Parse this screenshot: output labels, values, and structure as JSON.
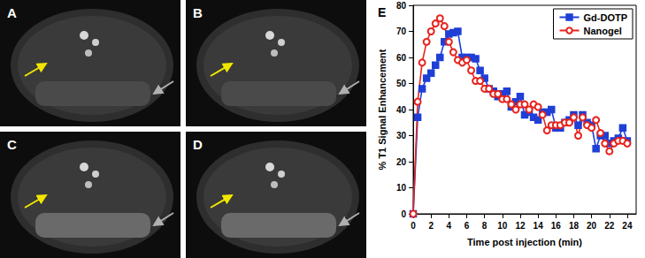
{
  "image_panels": {
    "labels": [
      "A",
      "B",
      "C",
      "D"
    ]
  },
  "chart_data": {
    "type": "line",
    "title": "E",
    "x_label": "Time post injection (min)",
    "y_label": "% T1 Signal Enhancement",
    "xlim": [
      0,
      25
    ],
    "xticks": [
      0,
      2,
      4,
      6,
      8,
      10,
      12,
      14,
      16,
      18,
      20,
      22,
      24
    ],
    "ylim": [
      0,
      80
    ],
    "yticks": [
      0,
      10,
      20,
      30,
      40,
      50,
      60,
      70,
      80
    ],
    "grid": false,
    "legend": "upper right",
    "x": [
      0,
      0.5,
      1,
      1.5,
      2,
      2.5,
      3,
      3.5,
      4,
      4.5,
      5,
      5.5,
      6,
      6.5,
      7,
      7.5,
      8,
      8.5,
      9,
      9.5,
      10,
      10.5,
      11,
      11.5,
      12,
      12.5,
      13,
      13.5,
      14,
      14.5,
      15,
      15.5,
      16,
      16.5,
      17,
      17.5,
      18,
      18.5,
      19,
      19.5,
      20,
      20.5,
      21,
      21.5,
      22,
      22.5,
      23,
      23.5,
      24
    ],
    "series": [
      {
        "name": "Gd-DOTP",
        "color": "#1f3fd6",
        "marker": "square",
        "line_style": "solid",
        "values": [
          0,
          37,
          48,
          52,
          54,
          57,
          60,
          66,
          69,
          69.5,
          70,
          60,
          60,
          60,
          59.5,
          55,
          52,
          48,
          47,
          45,
          46,
          47,
          41,
          43,
          45,
          38,
          39,
          37,
          36,
          39,
          39,
          40,
          33,
          33,
          35,
          36,
          38,
          34,
          38,
          35,
          34,
          25,
          30,
          30,
          27,
          28,
          29,
          33,
          28
        ]
      },
      {
        "name": "Nanogel",
        "color": "#e8231c",
        "marker": "open circle",
        "line_style": "solid",
        "values": [
          0,
          43,
          58,
          66,
          70,
          73,
          75,
          72,
          66,
          62,
          59,
          58,
          59,
          55,
          51,
          51,
          48,
          48,
          46,
          46,
          44,
          44,
          42,
          40,
          42,
          42,
          40,
          42,
          41,
          38,
          32,
          34,
          34,
          34,
          35,
          35,
          37,
          30,
          37,
          34,
          33,
          36,
          31,
          27,
          24,
          27,
          28,
          28,
          27
        ]
      }
    ]
  }
}
